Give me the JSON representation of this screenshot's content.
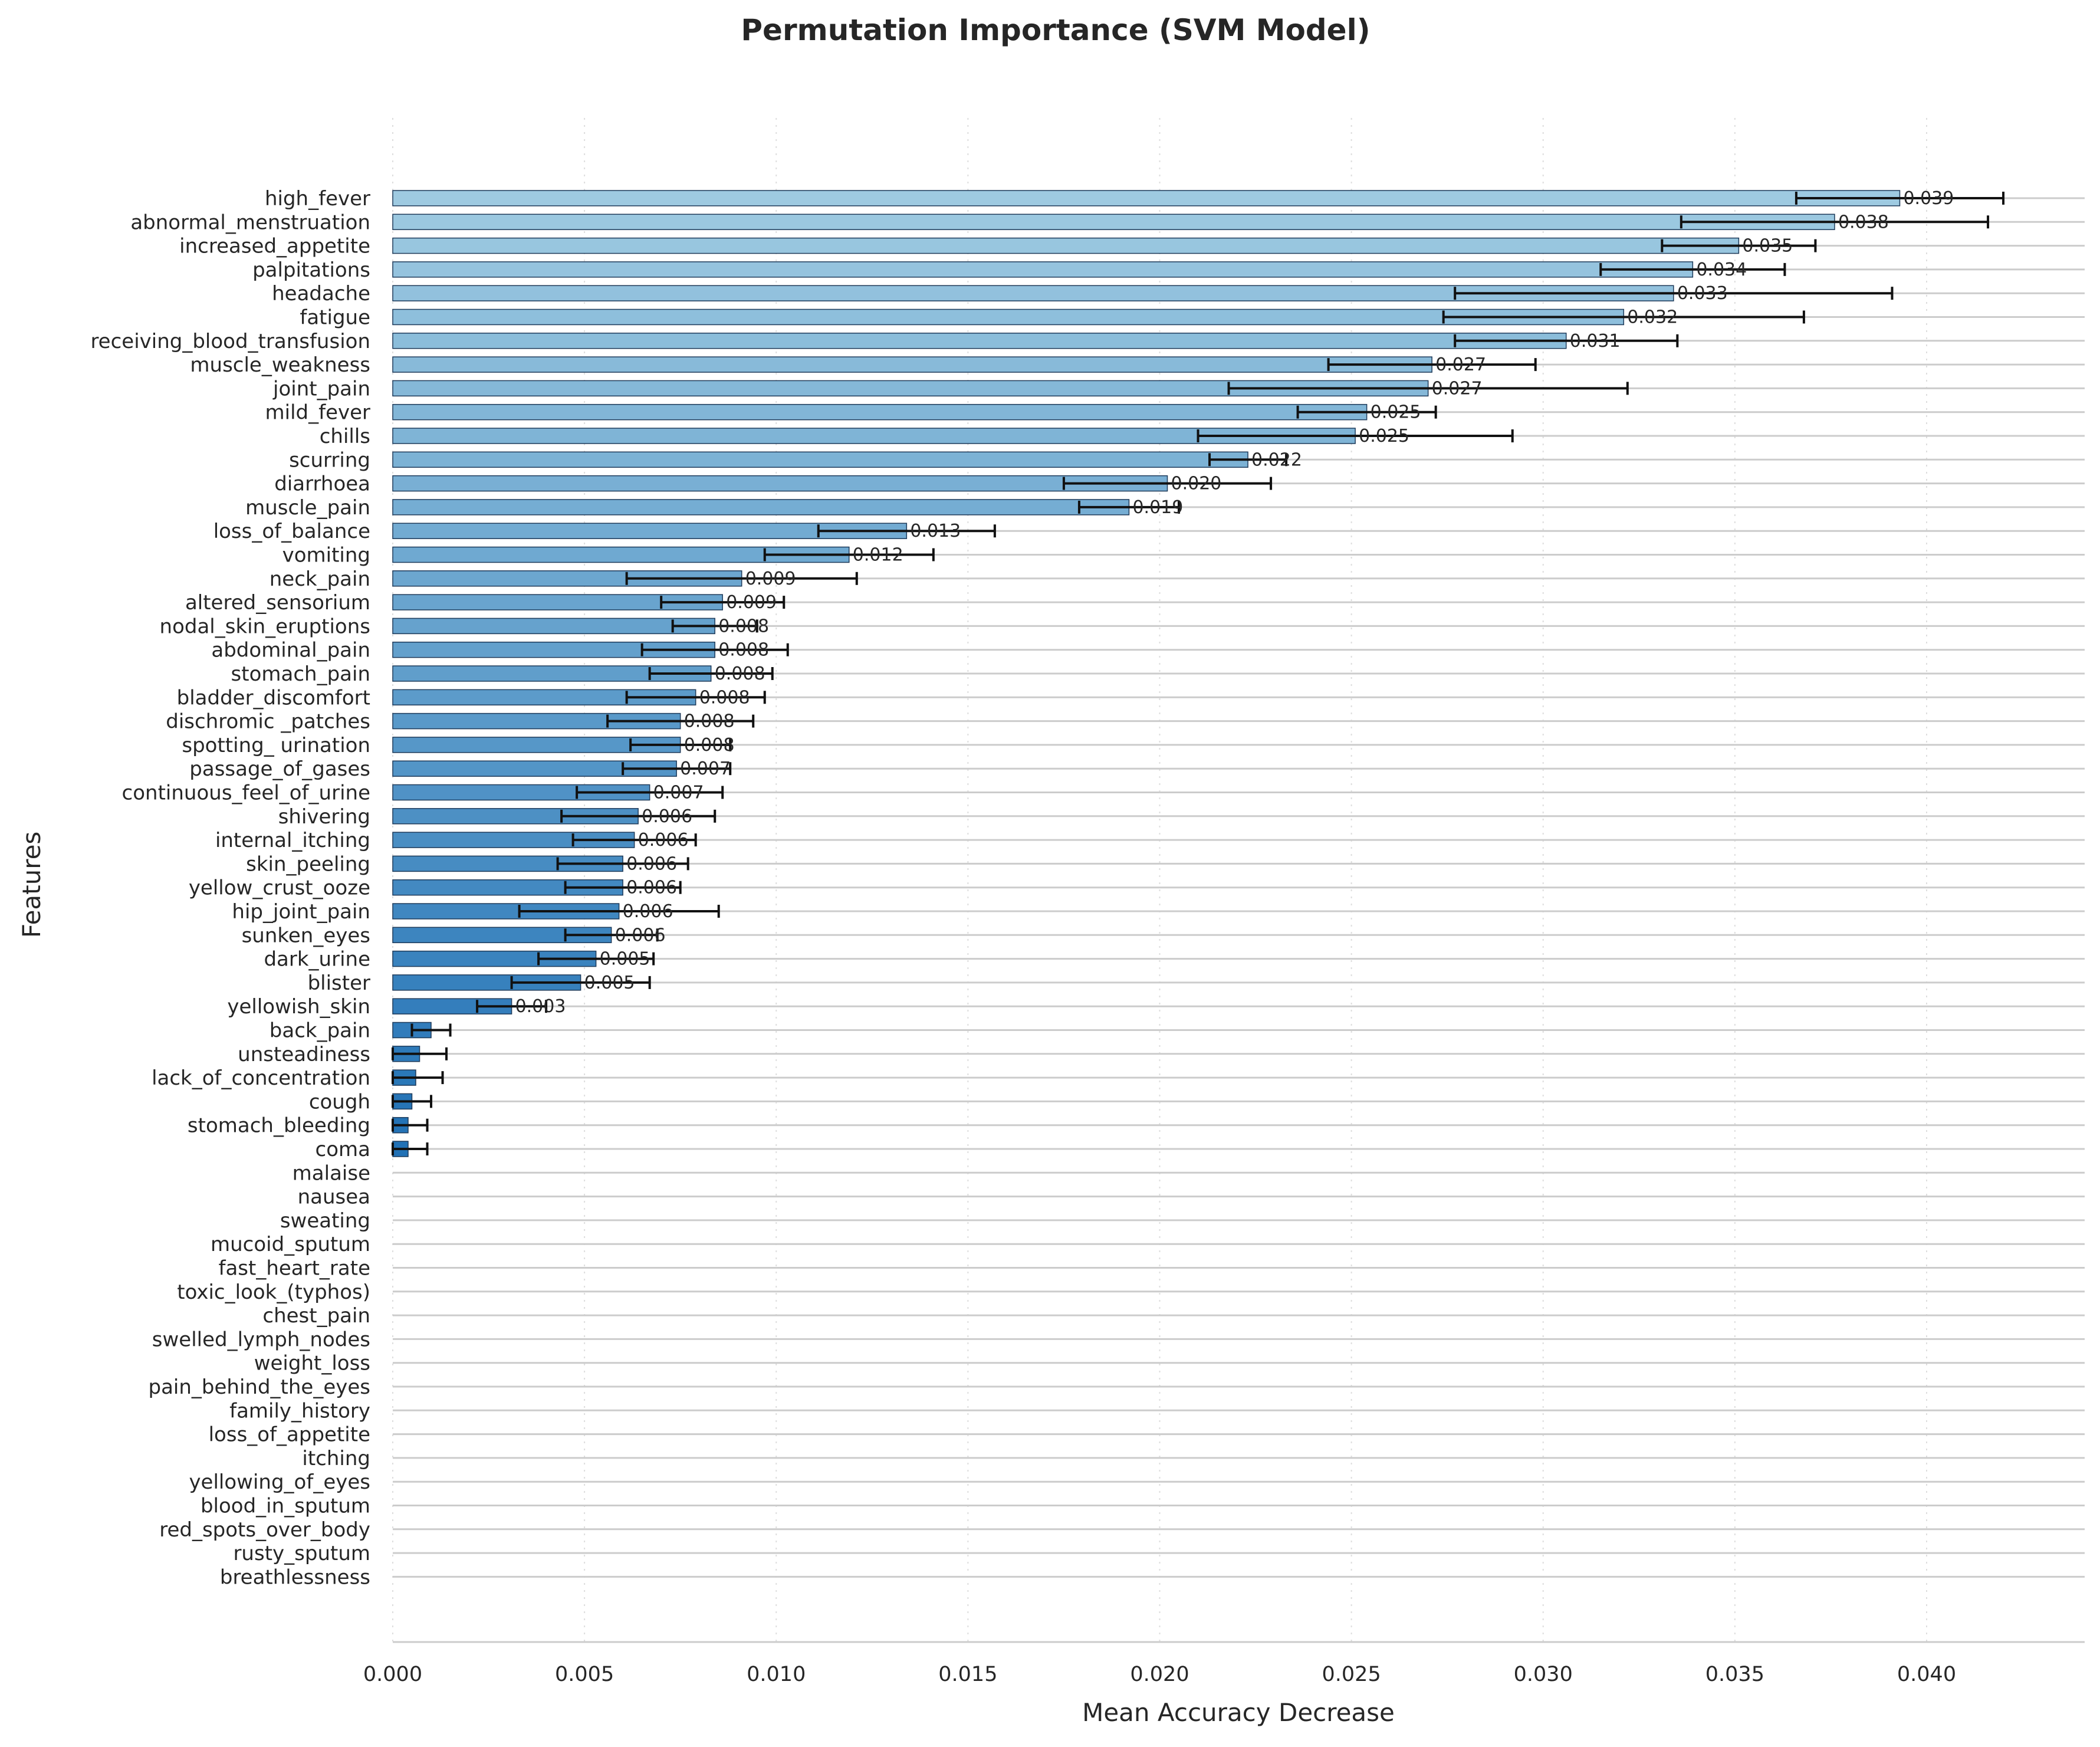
{
  "chart_data": {
    "type": "bar",
    "orientation": "horizontal",
    "title": "Permutation Importance (SVM Model)",
    "xlabel": "Mean Accuracy Decrease",
    "ylabel": "Features",
    "xlim": [
      0,
      0.044
    ],
    "x_ticks": [
      "0.000",
      "0.005",
      "0.010",
      "0.015",
      "0.020",
      "0.025",
      "0.030",
      "0.035",
      "0.040"
    ],
    "grid": "x-dotted",
    "colors": {
      "bar_light": "#9ecae1",
      "bar_dark": "#2171b5",
      "bar_edge": "#1f3b5a",
      "error": "#111111",
      "row_line": "#cccccc"
    },
    "categories": [
      "high_fever",
      "abnormal_menstruation",
      "increased_appetite",
      "palpitations",
      "headache",
      "fatigue",
      "receiving_blood_transfusion",
      "muscle_weakness",
      "joint_pain",
      "mild_fever",
      "chills",
      "scurring",
      "diarrhoea",
      "muscle_pain",
      "loss_of_balance",
      "vomiting",
      "neck_pain",
      "altered_sensorium",
      "nodal_skin_eruptions",
      "abdominal_pain",
      "stomach_pain",
      "bladder_discomfort",
      "dischromic _patches",
      "spotting_ urination",
      "passage_of_gases",
      "continuous_feel_of_urine",
      "shivering",
      "internal_itching",
      "skin_peeling",
      "yellow_crust_ooze",
      "hip_joint_pain",
      "sunken_eyes",
      "dark_urine",
      "blister",
      "yellowish_skin",
      "back_pain",
      "unsteadiness",
      "lack_of_concentration",
      "cough",
      "stomach_bleeding",
      "coma",
      "malaise",
      "nausea",
      "sweating",
      "mucoid_sputum",
      "fast_heart_rate",
      "toxic_look_(typhos)",
      "chest_pain",
      "swelled_lymph_nodes",
      "weight_loss",
      "pain_behind_the_eyes",
      "family_history",
      "loss_of_appetite",
      "itching",
      "yellowing_of_eyes",
      "blood_in_sputum",
      "red_spots_over_body",
      "rusty_sputum",
      "breathlessness"
    ],
    "values": [
      0.0393,
      0.0376,
      0.0351,
      0.0339,
      0.0334,
      0.0321,
      0.0306,
      0.0271,
      0.027,
      0.0254,
      0.0251,
      0.0223,
      0.0202,
      0.0192,
      0.0134,
      0.0119,
      0.0091,
      0.0086,
      0.0084,
      0.0084,
      0.0083,
      0.0079,
      0.0075,
      0.0075,
      0.0074,
      0.0067,
      0.0064,
      0.0063,
      0.006,
      0.006,
      0.0059,
      0.0057,
      0.0053,
      0.0049,
      0.0031,
      0.001,
      0.0007,
      0.0006,
      0.0005,
      0.0004,
      0.0004,
      0,
      0,
      0,
      0,
      0,
      0,
      0,
      0,
      0,
      0,
      0,
      0,
      0,
      0,
      0,
      0,
      0,
      0
    ],
    "errors": [
      0.0027,
      0.004,
      0.002,
      0.0024,
      0.0057,
      0.0047,
      0.0029,
      0.0027,
      0.0052,
      0.0018,
      0.0041,
      0.001,
      0.0027,
      0.0013,
      0.0023,
      0.0022,
      0.003,
      0.0016,
      0.0011,
      0.0019,
      0.0016,
      0.0018,
      0.0019,
      0.0013,
      0.0014,
      0.0019,
      0.002,
      0.0016,
      0.0017,
      0.0015,
      0.0026,
      0.0012,
      0.0015,
      0.0018,
      0.0009,
      0.0005,
      0.0007,
      0.0007,
      0.0005,
      0.0005,
      0.0005,
      0,
      0,
      0,
      0,
      0,
      0,
      0,
      0,
      0,
      0,
      0,
      0,
      0,
      0,
      0,
      0,
      0,
      0
    ],
    "value_labels": [
      "0.039",
      "0.038",
      "0.035",
      "0.034",
      "0.033",
      "0.032",
      "0.031",
      "0.027",
      "0.027",
      "0.025",
      "0.025",
      "0.022",
      "0.020",
      "0.019",
      "0.013",
      "0.012",
      "0.009",
      "0.009",
      "0.008",
      "0.008",
      "0.008",
      "0.008",
      "0.008",
      "0.008",
      "0.007",
      "0.007",
      "0.006",
      "0.006",
      "0.006",
      "0.006",
      "0.006",
      "0.006",
      "0.005",
      "0.005",
      "0.003",
      "",
      "",
      "",
      "",
      "",
      "",
      "",
      "",
      "",
      "",
      "",
      "",
      "",
      "",
      "",
      "",
      "",
      "",
      "",
      "",
      "",
      "",
      "",
      ""
    ]
  }
}
